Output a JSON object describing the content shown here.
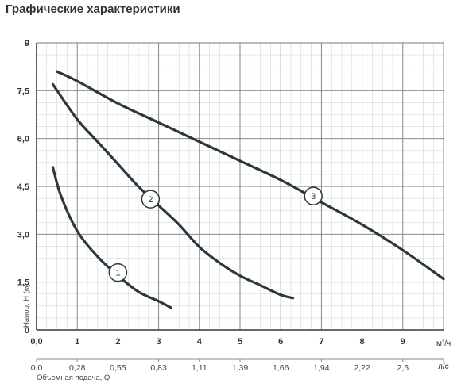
{
  "page": {
    "title": "Графические характеристики"
  },
  "chart_data": {
    "type": "line",
    "ylabel": "Напор, H (м)",
    "xlabel": "Объемная подача, Q",
    "x_unit": "м³/ч",
    "x2_unit": "л/с",
    "ylim": [
      0,
      9
    ],
    "xlim": [
      0,
      10
    ],
    "y_ticks": [
      "0",
      "1,5",
      "3,0",
      "4,5",
      "6,0",
      "7,5",
      "9"
    ],
    "y_tick_values": [
      0,
      1.5,
      3,
      4.5,
      6,
      7.5,
      9
    ],
    "x_ticks": [
      "0,0",
      "1",
      "2",
      "3",
      "4",
      "5",
      "6",
      "7",
      "8",
      "9"
    ],
    "x_tick_values": [
      0,
      1,
      2,
      3,
      4,
      5,
      6,
      7,
      8,
      9
    ],
    "x2_ticks": [
      "0,0",
      "0,28",
      "0,55",
      "0,83",
      "1,11",
      "1,39",
      "1,66",
      "1,94",
      "2,22",
      "2,5"
    ],
    "grid": true,
    "series": [
      {
        "name": "1",
        "label_at": [
          2.0,
          1.8
        ],
        "x": [
          0.4,
          0.6,
          1.0,
          1.5,
          2.0,
          2.5,
          3.0,
          3.3
        ],
        "y": [
          5.1,
          4.2,
          3.1,
          2.3,
          1.7,
          1.2,
          0.9,
          0.7
        ]
      },
      {
        "name": "2",
        "label_at": [
          2.8,
          4.1
        ],
        "x": [
          0.4,
          1.0,
          1.5,
          2.0,
          2.5,
          3.0,
          3.5,
          4.0,
          4.5,
          5.0,
          5.5,
          6.0,
          6.3
        ],
        "y": [
          7.7,
          6.6,
          5.9,
          5.2,
          4.5,
          3.9,
          3.3,
          2.6,
          2.1,
          1.7,
          1.4,
          1.1,
          1.0
        ]
      },
      {
        "name": "3",
        "label_at": [
          6.8,
          4.2
        ],
        "x": [
          0.5,
          1.0,
          2.0,
          3.0,
          4.0,
          5.0,
          6.0,
          7.0,
          8.0,
          9.0,
          10.0
        ],
        "y": [
          8.1,
          7.8,
          7.1,
          6.5,
          5.9,
          5.3,
          4.7,
          4.0,
          3.3,
          2.5,
          1.6
        ]
      }
    ]
  }
}
